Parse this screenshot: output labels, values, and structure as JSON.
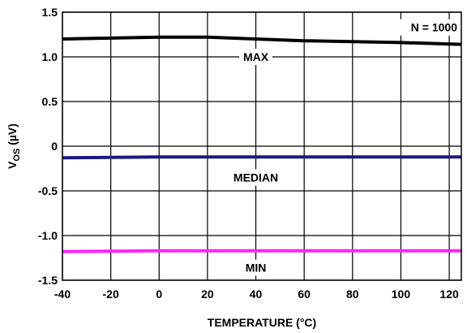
{
  "chart_data": {
    "type": "line",
    "title": "",
    "xlabel": "TEMPERATURE (°C)",
    "ylabel": "V",
    "ylabel_sub": "OS",
    "ylabel_unit": " (µV)",
    "xlim": [
      -40,
      125
    ],
    "ylim": [
      -1.5,
      1.5
    ],
    "x_ticks": [
      -40,
      -20,
      0,
      20,
      40,
      60,
      80,
      100,
      120
    ],
    "x_tick_labels": [
      "-40",
      "-20",
      "0",
      "20",
      "40",
      "60",
      "80",
      "100",
      "120"
    ],
    "y_ticks": [
      1.5,
      1.0,
      0.5,
      0,
      -0.5,
      -1.0,
      -1.5
    ],
    "y_tick_labels": [
      "1.5",
      "1.0",
      "0.5",
      "0",
      "-0.5",
      "-1.0",
      "-1.5"
    ],
    "grid": true,
    "annotation": "N = 1000",
    "series": [
      {
        "name": "MAX",
        "color": "#000000",
        "x": [
          -40,
          -20,
          0,
          20,
          40,
          60,
          80,
          100,
          125
        ],
        "y": [
          1.2,
          1.21,
          1.22,
          1.22,
          1.2,
          1.18,
          1.17,
          1.16,
          1.14
        ]
      },
      {
        "name": "MEDIAN",
        "color": "#1a1a80",
        "x": [
          -40,
          0,
          40,
          80,
          125
        ],
        "y": [
          -0.13,
          -0.12,
          -0.12,
          -0.12,
          -0.12
        ]
      },
      {
        "name": "MIN",
        "color": "#ff22ff",
        "x": [
          -40,
          0,
          40,
          80,
          125
        ],
        "y": [
          -1.18,
          -1.17,
          -1.17,
          -1.17,
          -1.17
        ]
      }
    ]
  }
}
